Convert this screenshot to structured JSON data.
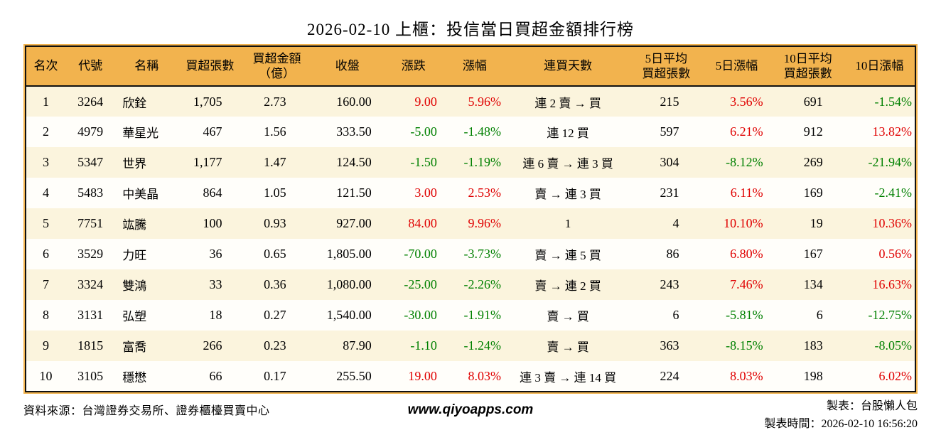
{
  "title": "2026-02-10 上櫃：投信當日買超金額排行榜",
  "colors": {
    "up": "#e00000",
    "down": "#008000",
    "header_bg": "#f2b34e",
    "row_odd": "#fbf4dd",
    "row_even": "#fffefa",
    "line": "#111111"
  },
  "table": {
    "headers": [
      "名次",
      "代號",
      "名稱",
      "買超張數",
      "買超金額\n（億）",
      "收盤",
      "漲跌",
      "漲幅",
      "連買天數",
      "5日平均\n買超張數",
      "5日漲幅",
      "10日平均\n買超張數",
      "10日漲幅"
    ],
    "rows": [
      {
        "rank": "1",
        "code": "3264",
        "name": "欣銓",
        "lots": "1,705",
        "amount": "2.73",
        "close": "160.00",
        "change": {
          "text": "9.00",
          "dir": "up"
        },
        "chgpct": {
          "text": "5.96%",
          "dir": "up"
        },
        "streak": "連 2 賣 → 買",
        "avg5": "215",
        "pct5": {
          "text": "3.56%",
          "dir": "up"
        },
        "avg10": "691",
        "pct10": {
          "text": "-1.54%",
          "dir": "down"
        }
      },
      {
        "rank": "2",
        "code": "4979",
        "name": "華星光",
        "lots": "467",
        "amount": "1.56",
        "close": "333.50",
        "change": {
          "text": "-5.00",
          "dir": "down"
        },
        "chgpct": {
          "text": "-1.48%",
          "dir": "down"
        },
        "streak": "連 12 買",
        "avg5": "597",
        "pct5": {
          "text": "6.21%",
          "dir": "up"
        },
        "avg10": "912",
        "pct10": {
          "text": "13.82%",
          "dir": "up"
        }
      },
      {
        "rank": "3",
        "code": "5347",
        "name": "世界",
        "lots": "1,177",
        "amount": "1.47",
        "close": "124.50",
        "change": {
          "text": "-1.50",
          "dir": "down"
        },
        "chgpct": {
          "text": "-1.19%",
          "dir": "down"
        },
        "streak": "連 6 賣 → 連 3 買",
        "avg5": "304",
        "pct5": {
          "text": "-8.12%",
          "dir": "down"
        },
        "avg10": "269",
        "pct10": {
          "text": "-21.94%",
          "dir": "down"
        }
      },
      {
        "rank": "4",
        "code": "5483",
        "name": "中美晶",
        "lots": "864",
        "amount": "1.05",
        "close": "121.50",
        "change": {
          "text": "3.00",
          "dir": "up"
        },
        "chgpct": {
          "text": "2.53%",
          "dir": "up"
        },
        "streak": "賣 → 連 3 買",
        "avg5": "231",
        "pct5": {
          "text": "6.11%",
          "dir": "up"
        },
        "avg10": "169",
        "pct10": {
          "text": "-2.41%",
          "dir": "down"
        }
      },
      {
        "rank": "5",
        "code": "7751",
        "name": "竑騰",
        "lots": "100",
        "amount": "0.93",
        "close": "927.00",
        "change": {
          "text": "84.00",
          "dir": "up"
        },
        "chgpct": {
          "text": "9.96%",
          "dir": "up"
        },
        "streak": "1",
        "avg5": "4",
        "pct5": {
          "text": "10.10%",
          "dir": "up"
        },
        "avg10": "19",
        "pct10": {
          "text": "10.36%",
          "dir": "up"
        }
      },
      {
        "rank": "6",
        "code": "3529",
        "name": "力旺",
        "lots": "36",
        "amount": "0.65",
        "close": "1,805.00",
        "change": {
          "text": "-70.00",
          "dir": "down"
        },
        "chgpct": {
          "text": "-3.73%",
          "dir": "down"
        },
        "streak": "賣 → 連 5 買",
        "avg5": "86",
        "pct5": {
          "text": "6.80%",
          "dir": "up"
        },
        "avg10": "167",
        "pct10": {
          "text": "0.56%",
          "dir": "up"
        }
      },
      {
        "rank": "7",
        "code": "3324",
        "name": "雙鴻",
        "lots": "33",
        "amount": "0.36",
        "close": "1,080.00",
        "change": {
          "text": "-25.00",
          "dir": "down"
        },
        "chgpct": {
          "text": "-2.26%",
          "dir": "down"
        },
        "streak": "賣 → 連 2 買",
        "avg5": "243",
        "pct5": {
          "text": "7.46%",
          "dir": "up"
        },
        "avg10": "134",
        "pct10": {
          "text": "16.63%",
          "dir": "up"
        }
      },
      {
        "rank": "8",
        "code": "3131",
        "name": "弘塑",
        "lots": "18",
        "amount": "0.27",
        "close": "1,540.00",
        "change": {
          "text": "-30.00",
          "dir": "down"
        },
        "chgpct": {
          "text": "-1.91%",
          "dir": "down"
        },
        "streak": "賣 → 買",
        "avg5": "6",
        "pct5": {
          "text": "-5.81%",
          "dir": "down"
        },
        "avg10": "6",
        "pct10": {
          "text": "-12.75%",
          "dir": "down"
        }
      },
      {
        "rank": "9",
        "code": "1815",
        "name": "富喬",
        "lots": "266",
        "amount": "0.23",
        "close": "87.90",
        "change": {
          "text": "-1.10",
          "dir": "down"
        },
        "chgpct": {
          "text": "-1.24%",
          "dir": "down"
        },
        "streak": "賣 → 買",
        "avg5": "363",
        "pct5": {
          "text": "-8.15%",
          "dir": "down"
        },
        "avg10": "183",
        "pct10": {
          "text": "-8.05%",
          "dir": "down"
        }
      },
      {
        "rank": "10",
        "code": "3105",
        "name": "穩懋",
        "lots": "66",
        "amount": "0.17",
        "close": "255.50",
        "change": {
          "text": "19.00",
          "dir": "up"
        },
        "chgpct": {
          "text": "8.03%",
          "dir": "up"
        },
        "streak": "連 3 賣 → 連 14 買",
        "avg5": "224",
        "pct5": {
          "text": "8.03%",
          "dir": "up"
        },
        "avg10": "198",
        "pct10": {
          "text": "6.02%",
          "dir": "up"
        }
      }
    ]
  },
  "footer": {
    "source": "資料來源：台灣證券交易所、證券櫃檯買賣中心",
    "website": "www.qiyoapps.com",
    "made_by": "製表：台股懶人包",
    "made_time": "製表時間：2026-02-10 16:56:20"
  }
}
